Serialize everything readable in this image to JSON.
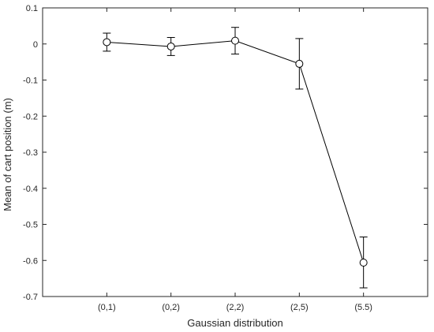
{
  "chart_data": {
    "type": "line",
    "xlabel": "Gaussian distribution",
    "ylabel": "Mean of cart position (m)",
    "categories": [
      "(0,1)",
      "(0,2)",
      "(2,2)",
      "(2,5)",
      "(5.5)"
    ],
    "ylim": [
      -0.7,
      0.1
    ],
    "yticks": [
      0.1,
      0,
      -0.1,
      -0.2,
      -0.3,
      -0.4,
      -0.5,
      -0.6,
      -0.7
    ],
    "ytick_labels": [
      "0.1",
      "0",
      "-0.1",
      "-0.2",
      "-0.3",
      "-0.4",
      "-0.5",
      "-0.6",
      "-0.7"
    ],
    "grid": false,
    "marker": "circle",
    "series": [
      {
        "values": [
          0.005,
          -0.007,
          0.009,
          -0.055,
          -0.606
        ],
        "error_upper": [
          0.03,
          0.018,
          0.046,
          0.015,
          -0.535
        ],
        "error_lower": [
          -0.02,
          -0.032,
          -0.028,
          -0.125,
          -0.676
        ],
        "color": "#000000"
      }
    ]
  }
}
